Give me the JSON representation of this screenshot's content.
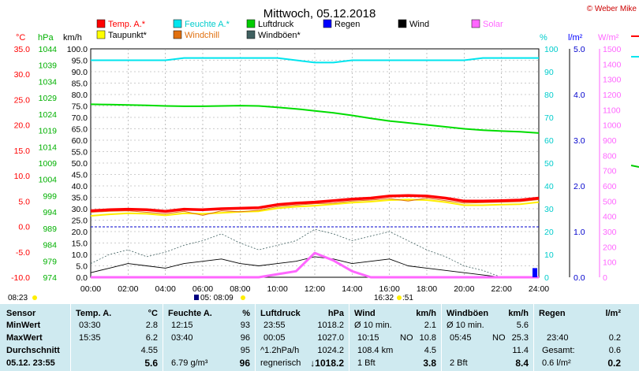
{
  "title": "Mittwoch, 05.12.2018",
  "credit": "© Weber Mike",
  "axis_units": {
    "temp": "°C",
    "pressure": "hPa",
    "speed": "km/h",
    "humidity": "%",
    "rain": "l/m²",
    "solar": "W/m²"
  },
  "legend": [
    {
      "label": "Temp. A.*",
      "color": "#ff0000"
    },
    {
      "label": "Feuchte A.*",
      "color": "#00e5ee"
    },
    {
      "label": "Luftdruck",
      "color": "#00cc00"
    },
    {
      "label": "Regen",
      "color": "#0000ff"
    },
    {
      "label": "Wind",
      "color": "#000000"
    },
    {
      "label": "Solar",
      "color": "#ff66ff"
    },
    {
      "label": "Taupunkt*",
      "color": "#ffff00"
    },
    {
      "label": "Windchill",
      "color": "#e07010"
    },
    {
      "label": "Windböen*",
      "color": "#406060"
    }
  ],
  "sun": {
    "rise": "08:23",
    "set": "16:32",
    "moon_rise": "05: 08:09",
    "moon_set": ":51"
  },
  "chart_data": {
    "type": "line",
    "x": [
      0,
      1,
      2,
      3,
      4,
      5,
      6,
      7,
      8,
      9,
      10,
      11,
      12,
      13,
      14,
      15,
      16,
      17,
      18,
      19,
      20,
      21,
      22,
      23,
      24
    ],
    "x_tick_labels": [
      "00:00",
      "02:00",
      "04:00",
      "06:00",
      "08:00",
      "10:00",
      "12:00",
      "14:00",
      "16:00",
      "18:00",
      "20:00",
      "22:00",
      "24:00"
    ],
    "axes": {
      "temp": {
        "ylim": [
          -10,
          35
        ],
        "ticks": [
          "35.0",
          "30.0",
          "25.0",
          "20.0",
          "15.0",
          "10.0",
          "5.0",
          "0.0",
          "-5.0",
          "-10.0"
        ]
      },
      "pressure": {
        "ylim": [
          974,
          1044
        ],
        "ticks": [
          "1044",
          "1039",
          "1034",
          "1029",
          "1024",
          "1019",
          "1014",
          "1009",
          "1004",
          "999",
          "994",
          "989",
          "984",
          "979",
          "974"
        ]
      },
      "speed": {
        "ylim": [
          0,
          100
        ],
        "ticks": [
          "100.0",
          "95.0",
          "90.0",
          "85.0",
          "80.0",
          "75.0",
          "70.0",
          "65.0",
          "60.0",
          "55.0",
          "50.0",
          "45.0",
          "40.0",
          "35.0",
          "30.0",
          "25.0",
          "20.0",
          "15.0",
          "10.0",
          "5.0",
          "0.0"
        ]
      },
      "humidity": {
        "ylim": [
          0,
          100
        ],
        "ticks": [
          "100",
          "90",
          "80",
          "70",
          "60",
          "50",
          "40",
          "30",
          "20",
          "10",
          "0"
        ]
      },
      "rain": {
        "ylim": [
          0,
          5
        ],
        "ticks": [
          "5.0",
          "4.0",
          "3.0",
          "2.0",
          "1.0",
          "0.0"
        ]
      },
      "solar": {
        "ylim": [
          0,
          1500
        ],
        "ticks": [
          "1500",
          "1400",
          "1300",
          "1200",
          "1100",
          "1000",
          "900",
          "800",
          "700",
          "600",
          "500",
          "400",
          "300",
          "200",
          "100",
          "0"
        ]
      }
    },
    "series": [
      {
        "name": "Temp. A.*",
        "axis": "temp",
        "values": [
          3.1,
          3.3,
          3.4,
          3.3,
          3.0,
          3.4,
          3.3,
          3.5,
          3.6,
          3.7,
          4.3,
          4.6,
          4.8,
          5.1,
          5.4,
          5.6,
          6.0,
          6.1,
          6.0,
          5.6,
          5.0,
          5.0,
          5.1,
          5.2,
          5.6
        ]
      },
      {
        "name": "Taupunkt*",
        "axis": "temp",
        "values": [
          2.1,
          2.4,
          2.6,
          2.5,
          2.2,
          2.6,
          2.5,
          2.7,
          2.9,
          3.0,
          3.6,
          3.9,
          4.1,
          4.4,
          4.7,
          4.9,
          5.2,
          5.3,
          5.2,
          4.8,
          4.2,
          4.2,
          4.3,
          4.4,
          4.8
        ]
      },
      {
        "name": "Windchill",
        "axis": "temp",
        "values": [
          2.8,
          3.0,
          3.1,
          2.8,
          2.5,
          3.0,
          2.2,
          3.1,
          2.9,
          3.2,
          3.9,
          4.2,
          4.5,
          4.6,
          5.0,
          5.2,
          5.5,
          5.0,
          5.6,
          5.1,
          4.6,
          4.7,
          4.8,
          4.9,
          5.3
        ]
      },
      {
        "name": "Feuchte A.*",
        "axis": "humidity",
        "values": [
          95,
          95,
          95,
          95,
          95,
          96,
          96,
          96,
          96,
          96,
          96,
          95,
          94,
          94,
          95,
          95,
          95,
          95,
          95,
          95,
          95,
          96,
          96,
          96,
          96
        ]
      },
      {
        "name": "Luftdruck",
        "axis": "pressure",
        "values": [
          1027.0,
          1026.9,
          1026.8,
          1026.7,
          1026.5,
          1026.4,
          1026.4,
          1026.5,
          1026.6,
          1026.5,
          1026.1,
          1025.6,
          1025.0,
          1024.4,
          1023.6,
          1022.7,
          1021.9,
          1021.3,
          1020.7,
          1020.1,
          1019.5,
          1019.1,
          1018.8,
          1018.6,
          1018.2
        ]
      },
      {
        "name": "Wind",
        "axis": "speed",
        "values": [
          2,
          4,
          6,
          5,
          4,
          6,
          7,
          8,
          6,
          5,
          6,
          7,
          9,
          8,
          6,
          7,
          8,
          5,
          4,
          3,
          2,
          1,
          0,
          0,
          0
        ]
      },
      {
        "name": "Windböen*",
        "axis": "speed",
        "values": [
          6,
          10,
          12,
          9,
          11,
          14,
          16,
          19,
          15,
          12,
          14,
          16,
          21,
          19,
          16,
          18,
          20,
          16,
          12,
          9,
          5,
          3,
          0,
          0,
          0
        ]
      },
      {
        "name": "Solar",
        "axis": "solar",
        "values": [
          0,
          0,
          0,
          0,
          0,
          0,
          0,
          0,
          0,
          0,
          20,
          40,
          160,
          110,
          40,
          0,
          0,
          0,
          0,
          0,
          0,
          0,
          0,
          0,
          0
        ]
      },
      {
        "name": "Regen",
        "axis": "rain",
        "values": [
          0,
          0,
          0,
          0,
          0,
          0,
          0,
          0,
          0,
          0,
          0,
          0,
          0,
          0,
          0,
          0,
          0,
          0,
          0,
          0,
          0,
          0,
          0,
          0,
          0.2
        ]
      }
    ],
    "grid": true
  },
  "table": {
    "col_sensor": {
      "h": "Sensor",
      "r1": "MinWert",
      "r2": "MaxWert",
      "r3": "Durchschnitt",
      "r4": "05.12. 23:55"
    },
    "col_temp": {
      "h": "Temp. A.",
      "u": "°C",
      "r1a": "03:30",
      "r1b": "2.8",
      "r2a": "15:35",
      "r2b": "6.2",
      "r3b": "4.55",
      "r4b": "5.6"
    },
    "col_hum": {
      "h": "Feuchte A.",
      "u": "%",
      "r1a": "12:15",
      "r1b": "93",
      "r2a": "03:40",
      "r2b": "96",
      "r3b": "95",
      "r4a": "6.79 g/m³",
      "r4b": "96"
    },
    "col_press": {
      "h": "Luftdruck",
      "u": "hPa",
      "r1a": "23:55",
      "r1b": "1018.2",
      "r2a": "00:05",
      "r2b": "1027.0",
      "r3a": "^1.2hPa/h",
      "r3b": "1024.2",
      "r4a": "regnerisch",
      "r4b": "↓1018.2"
    },
    "col_wind": {
      "h": "Wind",
      "u": "km/h",
      "r1a": "Ø 10 min.",
      "r1b": "2.1",
      "r2a": "10:15",
      "r2m": "NO",
      "r2b": "10.8",
      "r3a": "108.4 km",
      "r3b": "4.5",
      "r4a": "1 Bft",
      "r4b": "3.8"
    },
    "col_gust": {
      "h": "Windböen",
      "u": "km/h",
      "r1a": "Ø 10 min.",
      "r1b": "5.6",
      "r2a": "05:45",
      "r2m": "NO",
      "r2b": "25.3",
      "r3b": "11.4",
      "r4a": "2 Bft",
      "r4b": "8.4"
    },
    "col_rain": {
      "h": "Regen",
      "u": "l/m²",
      "r2a": "23:40",
      "r2b": "0.2",
      "r3a": "Gesamt:",
      "r3b": "0.6",
      "r4a": "0.6 l/m²",
      "r4b": "0.2"
    }
  }
}
